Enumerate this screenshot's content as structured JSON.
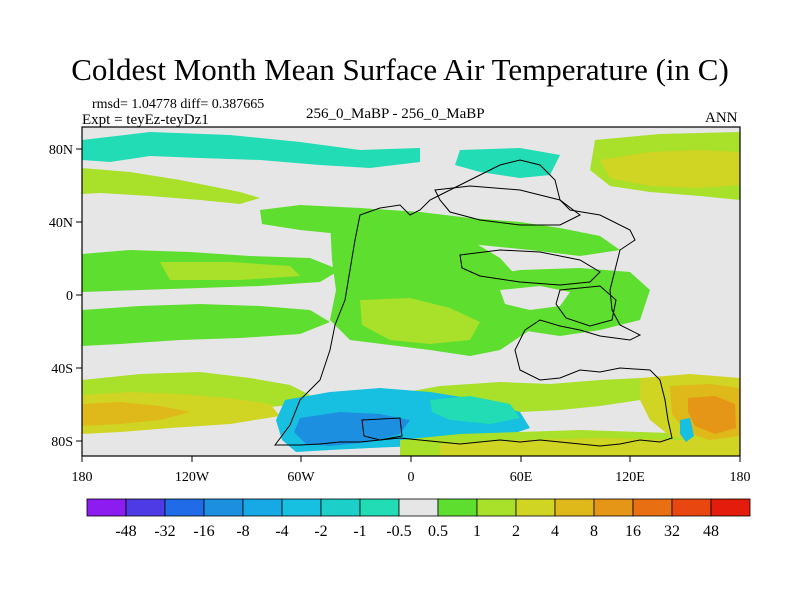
{
  "title": "Coldest Month Mean Surface Air Temperature (in C)",
  "stats": {
    "rmsd_diff": "rmsd= 1.04778 diff= 0.387665",
    "experiment": "Expt = teyEz-teyDz1",
    "comparison": "256_0_MaBP - 256_0_MaBP",
    "season": "ANN"
  },
  "axes": {
    "lon_ticks": [
      "180",
      "120W",
      "60W",
      "0",
      "60E",
      "120E",
      "180"
    ],
    "lat_ticks": [
      "80N",
      "40N",
      "0",
      "40S",
      "80S"
    ]
  },
  "colorbar": {
    "labels": [
      "-48",
      "-32",
      "-16",
      "-8",
      "-4",
      "-2",
      "-1",
      "-0.5",
      "0.5",
      "1",
      "2",
      "4",
      "8",
      "16",
      "32",
      "48"
    ],
    "colors": [
      "#8c1cf0",
      "#4f3be5",
      "#1f6be8",
      "#1d8fe0",
      "#16a9e6",
      "#17bfe0",
      "#1ccfc9",
      "#21dcb5",
      "#e6e6e6",
      "#5ede2e",
      "#a8e02a",
      "#d0d422",
      "#dfb81a",
      "#e59617",
      "#e87013",
      "#e8480f",
      "#e41c0b"
    ]
  },
  "palette": {
    "background": "#e6e6e6",
    "green": "#5ede2e",
    "lightgreen": "#a8e02a",
    "olive": "#d0d422",
    "gold": "#dfb81a",
    "orange": "#e59617",
    "cyan": "#17bfe0",
    "teal": "#21dcb5",
    "blue": "#1d8fe0",
    "outline": "#000000"
  }
}
